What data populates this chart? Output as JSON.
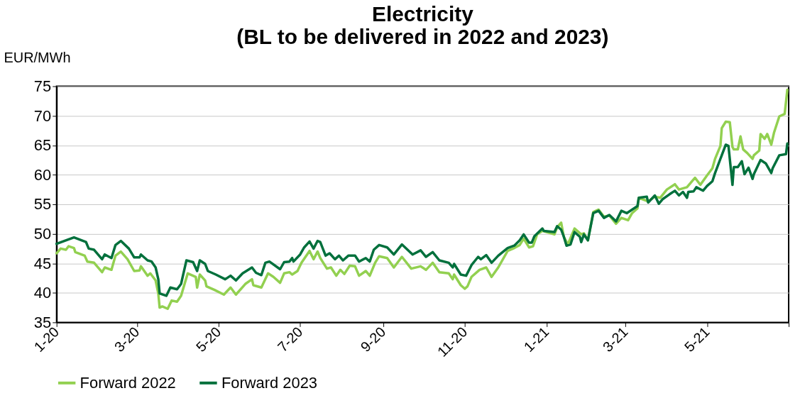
{
  "chart_data": {
    "type": "line",
    "title": "Electricity\n(BL to be delivered in 2022 and 2023)",
    "ylabel": "EUR/MWh",
    "xlim": [
      "2020-01-01",
      "2021-07-01"
    ],
    "xticks": [
      {
        "value": "2020-01-01",
        "label": "1-20"
      },
      {
        "value": "2020-03-01",
        "label": "3-20"
      },
      {
        "value": "2020-05-01",
        "label": "5-20"
      },
      {
        "value": "2020-07-01",
        "label": "7-20"
      },
      {
        "value": "2020-09-01",
        "label": "9-20"
      },
      {
        "value": "2020-11-01",
        "label": "11-20"
      },
      {
        "value": "2021-01-01",
        "label": "1-21"
      },
      {
        "value": "2021-03-01",
        "label": "3-21"
      },
      {
        "value": "2021-05-01",
        "label": "5-21"
      },
      {
        "value": "2021-07-01",
        "label": null
      }
    ],
    "ylim": [
      35,
      75
    ],
    "yticks": [
      35,
      40,
      45,
      50,
      55,
      60,
      65,
      70,
      75
    ],
    "grid": "y",
    "legend": "bottom",
    "marker": "none",
    "line_style": "solid",
    "series": [
      {
        "name": "Forward 2022",
        "color": "#92d050",
        "x": [
          "2020-01-01",
          "2020-01-04",
          "2020-01-08",
          "2020-01-10",
          "2020-01-14",
          "2020-01-15",
          "2020-01-22",
          "2020-01-24",
          "2020-01-29",
          "2020-02-04",
          "2020-02-06",
          "2020-02-11",
          "2020-02-14",
          "2020-02-18",
          "2020-02-23",
          "2020-02-28",
          "2020-03-03",
          "2020-03-04",
          "2020-03-09",
          "2020-03-11",
          "2020-03-15",
          "2020-03-17",
          "2020-03-18",
          "2020-03-20",
          "2020-03-24",
          "2020-03-27",
          "2020-03-31",
          "2020-04-03",
          "2020-04-08",
          "2020-04-14",
          "2020-04-15",
          "2020-04-17",
          "2020-04-21",
          "2020-04-22",
          "2020-04-28",
          "2020-05-05",
          "2020-05-10",
          "2020-05-14",
          "2020-05-21",
          "2020-05-26",
          "2020-05-27",
          "2020-06-02",
          "2020-06-07",
          "2020-06-11",
          "2020-06-16",
          "2020-06-19",
          "2020-06-23",
          "2020-06-25",
          "2020-06-29",
          "2020-07-02",
          "2020-07-08",
          "2020-07-11",
          "2020-07-14",
          "2020-07-16",
          "2020-07-21",
          "2020-07-24",
          "2020-07-28",
          "2020-07-31",
          "2020-08-03",
          "2020-08-07",
          "2020-08-11",
          "2020-08-14",
          "2020-08-19",
          "2020-08-22",
          "2020-08-26",
          "2020-08-29",
          "2020-09-04",
          "2020-09-09",
          "2020-09-15",
          "2020-09-22",
          "2020-09-29",
          "2020-10-03",
          "2020-10-08",
          "2020-10-13",
          "2020-10-20",
          "2020-10-23",
          "2020-10-24",
          "2020-10-29",
          "2020-11-01",
          "2020-11-03",
          "2020-11-06",
          "2020-11-12",
          "2020-11-17",
          "2020-11-21",
          "2020-11-26",
          "2020-12-03",
          "2020-12-08",
          "2020-12-12",
          "2020-12-15",
          "2020-12-19",
          "2020-12-22",
          "2020-12-25",
          "2020-12-29",
          "2021-01-07",
          "2021-01-09",
          "2021-01-12",
          "2021-01-14",
          "2021-01-17",
          "2021-01-22",
          "2021-01-27",
          "2021-01-29",
          "2021-02-01",
          "2021-02-05",
          "2021-02-09",
          "2021-02-13",
          "2021-02-17",
          "2021-02-22",
          "2021-02-26",
          "2021-03-03",
          "2021-03-06",
          "2021-03-10",
          "2021-03-11",
          "2021-03-18",
          "2021-03-23",
          "2021-03-27",
          "2021-04-01",
          "2021-04-07",
          "2021-04-10",
          "2021-04-16",
          "2021-04-22",
          "2021-04-26",
          "2021-05-01",
          "2021-05-05",
          "2021-05-07",
          "2021-05-11",
          "2021-05-12",
          "2021-05-15",
          "2021-05-18",
          "2021-05-20",
          "2021-05-21",
          "2021-05-24",
          "2021-05-26",
          "2021-05-28",
          "2021-05-31",
          "2021-06-04",
          "2021-06-05",
          "2021-06-09",
          "2021-06-10",
          "2021-06-13",
          "2021-06-15",
          "2021-06-18",
          "2021-06-20",
          "2021-06-24",
          "2021-06-28",
          "2021-06-30"
        ],
        "values": [
          46.7,
          47.5,
          47.3,
          47.9,
          47.6,
          46.9,
          46.3,
          45.3,
          45.1,
          43.5,
          44.3,
          43.9,
          46.3,
          47.0,
          45.7,
          43.7,
          43.8,
          44.5,
          42.9,
          43.3,
          42.1,
          39.9,
          37.5,
          37.7,
          37.3,
          38.7,
          38.5,
          39.5,
          43.3,
          42.7,
          40.9,
          43.1,
          42.1,
          41.1,
          40.5,
          39.7,
          40.9,
          39.7,
          41.5,
          42.3,
          41.3,
          40.9,
          43.3,
          42.7,
          41.7,
          43.3,
          43.5,
          43.1,
          43.7,
          45.1,
          47.1,
          45.7,
          47.0,
          45.9,
          44.1,
          44.3,
          42.9,
          43.9,
          43.2,
          44.6,
          44.5,
          42.9,
          43.7,
          42.9,
          45.1,
          46.2,
          45.9,
          44.3,
          46.1,
          44.1,
          44.5,
          43.9,
          45.1,
          43.5,
          43.3,
          42.3,
          43.1,
          41.3,
          40.7,
          41.1,
          42.7,
          43.9,
          44.3,
          42.7,
          44.3,
          47.1,
          47.6,
          48.1,
          49.2,
          47.7,
          47.9,
          49.9,
          50.5,
          49.9,
          51.1,
          51.9,
          49.5,
          48.2,
          50.9,
          49.9,
          50.1,
          48.9,
          53.7,
          54.1,
          52.9,
          53.1,
          51.7,
          52.7,
          52.3,
          53.5,
          54.3,
          56.1,
          55.5,
          56.3,
          56.1,
          57.5,
          58.4,
          57.5,
          57.9,
          59.5,
          58.3,
          59.9,
          61.1,
          62.7,
          64.9,
          67.9,
          69.0,
          68.9,
          64.7,
          64.3,
          64.3,
          66.5,
          64.3,
          63.7,
          62.7,
          63.3,
          64.1,
          66.9,
          66.1,
          66.9,
          65.1,
          67.1,
          69.9,
          70.3,
          74.4
        ]
      },
      {
        "name": "Forward 2023",
        "color": "#00703c",
        "x": [
          "2020-01-01",
          "2020-01-14",
          "2020-01-23",
          "2020-01-25",
          "2020-01-29",
          "2020-02-04",
          "2020-02-06",
          "2020-02-11",
          "2020-02-14",
          "2020-02-18",
          "2020-02-24",
          "2020-02-28",
          "2020-03-03",
          "2020-03-04",
          "2020-03-09",
          "2020-03-12",
          "2020-03-15",
          "2020-03-17",
          "2020-03-18",
          "2020-03-23",
          "2020-03-26",
          "2020-03-31",
          "2020-04-03",
          "2020-04-07",
          "2020-04-12",
          "2020-04-15",
          "2020-04-17",
          "2020-04-21",
          "2020-04-23",
          "2020-04-29",
          "2020-05-06",
          "2020-05-10",
          "2020-05-14",
          "2020-05-19",
          "2020-05-26",
          "2020-05-29",
          "2020-06-02",
          "2020-06-05",
          "2020-06-08",
          "2020-06-16",
          "2020-06-19",
          "2020-06-23",
          "2020-06-25",
          "2020-06-26",
          "2020-07-01",
          "2020-07-04",
          "2020-07-08",
          "2020-07-11",
          "2020-07-14",
          "2020-07-16",
          "2020-07-20",
          "2020-07-23",
          "2020-07-27",
          "2020-07-30",
          "2020-08-02",
          "2020-08-06",
          "2020-08-11",
          "2020-08-14",
          "2020-08-19",
          "2020-08-22",
          "2020-08-25",
          "2020-08-29",
          "2020-09-04",
          "2020-09-09",
          "2020-09-15",
          "2020-09-23",
          "2020-09-29",
          "2020-10-03",
          "2020-10-08",
          "2020-10-13",
          "2020-10-20",
          "2020-10-23",
          "2020-10-24",
          "2020-10-29",
          "2020-11-02",
          "2020-11-06",
          "2020-11-11",
          "2020-11-13",
          "2020-11-17",
          "2020-11-21",
          "2020-11-26",
          "2020-12-03",
          "2020-12-08",
          "2020-12-12",
          "2020-12-15",
          "2020-12-19",
          "2020-12-21",
          "2020-12-23",
          "2020-12-29",
          "2020-12-30",
          "2021-01-07",
          "2021-01-09",
          "2021-01-12",
          "2021-01-14",
          "2021-01-16",
          "2021-01-19",
          "2021-01-22",
          "2021-01-26",
          "2021-01-27",
          "2021-01-29",
          "2021-02-01",
          "2021-02-05",
          "2021-02-09",
          "2021-02-13",
          "2021-02-17",
          "2021-02-22",
          "2021-02-26",
          "2021-03-02",
          "2021-03-06",
          "2021-03-10",
          "2021-03-11",
          "2021-03-17",
          "2021-03-18",
          "2021-03-23",
          "2021-03-26",
          "2021-03-29",
          "2021-04-03",
          "2021-04-07",
          "2021-04-10",
          "2021-04-13",
          "2021-04-16",
          "2021-04-17",
          "2021-04-21",
          "2021-04-23",
          "2021-04-28",
          "2021-05-01",
          "2021-05-05",
          "2021-05-07",
          "2021-05-12",
          "2021-05-15",
          "2021-05-17",
          "2021-05-20",
          "2021-05-21",
          "2021-05-24",
          "2021-05-27",
          "2021-05-29",
          "2021-06-01",
          "2021-06-04",
          "2021-06-05",
          "2021-06-10",
          "2021-06-14",
          "2021-06-18",
          "2021-06-19",
          "2021-06-24",
          "2021-06-29",
          "2021-06-30"
        ],
        "values": [
          48.3,
          49.4,
          48.6,
          47.5,
          47.3,
          45.7,
          46.5,
          45.9,
          48.1,
          48.8,
          47.5,
          46.0,
          46.0,
          46.5,
          45.5,
          45.3,
          44.3,
          42.3,
          39.9,
          39.5,
          40.9,
          40.6,
          41.5,
          45.5,
          45.2,
          43.7,
          45.5,
          44.9,
          43.7,
          43.1,
          42.3,
          42.9,
          42.1,
          43.3,
          44.3,
          43.4,
          43.0,
          45.1,
          45.3,
          44.0,
          45.2,
          45.3,
          45.9,
          45.3,
          46.5,
          47.7,
          48.7,
          47.5,
          48.8,
          48.6,
          46.3,
          46.7,
          45.7,
          46.3,
          45.5,
          46.3,
          46.3,
          45.3,
          45.9,
          45.3,
          47.3,
          48.1,
          47.7,
          46.5,
          48.2,
          46.5,
          47.2,
          46.1,
          46.9,
          45.5,
          45.1,
          44.3,
          44.9,
          43.1,
          42.9,
          44.7,
          46.1,
          45.7,
          46.4,
          45.1,
          46.3,
          47.6,
          48.0,
          48.9,
          49.9,
          48.5,
          48.5,
          49.6,
          50.9,
          50.5,
          50.3,
          51.3,
          50.7,
          49.5,
          48.0,
          48.2,
          50.3,
          49.5,
          48.6,
          49.9,
          48.9,
          53.5,
          53.9,
          52.7,
          53.2,
          52.1,
          53.9,
          53.5,
          54.1,
          54.7,
          56.1,
          56.3,
          55.3,
          56.5,
          55.1,
          55.9,
          56.7,
          57.3,
          56.5,
          57.1,
          56.1,
          57.1,
          57.2,
          57.9,
          57.3,
          58.1,
          58.9,
          60.3,
          63.3,
          65.1,
          64.9,
          58.3,
          61.3,
          61.3,
          62.3,
          60.1,
          61.2,
          59.3,
          60.1,
          62.5,
          61.9,
          60.3,
          61.1,
          63.3,
          63.5,
          65.3
        ]
      }
    ]
  }
}
